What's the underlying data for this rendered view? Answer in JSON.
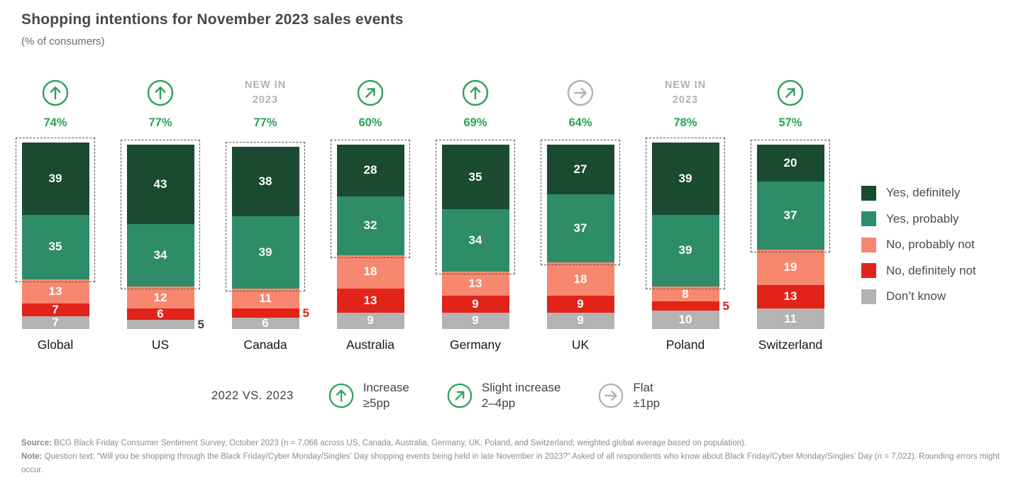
{
  "header": {
    "title": "Shopping intentions for November 2023 sales events",
    "subtitle": "(% of consumers)"
  },
  "colors": {
    "yes_definitely": "#1a4a2f",
    "yes_probably": "#2e8c69",
    "no_probably_not": "#f7886f",
    "no_definitely_not": "#e2231a",
    "dont_know": "#b4b3b1",
    "accent_green": "#27a355",
    "icon_green": "#2fa05c",
    "icon_gray": "#b1b1b1",
    "bracket": "#565656",
    "outside_red": "#d6261d",
    "outside_dark": "#3d3d3d"
  },
  "chart_data": {
    "type": "bar",
    "stacked": true,
    "unit": "% of consumers",
    "categories": [
      "Global",
      "US",
      "Canada",
      "Australia",
      "Germany",
      "UK",
      "Poland",
      "Switzerland"
    ],
    "series": [
      {
        "name": "Yes, definitely",
        "color": "#1a4a2f",
        "values": [
          39,
          43,
          38,
          28,
          35,
          27,
          39,
          20
        ]
      },
      {
        "name": "Yes, probably",
        "color": "#2e8c69",
        "values": [
          35,
          34,
          39,
          32,
          34,
          37,
          39,
          37
        ]
      },
      {
        "name": "No, probably not",
        "color": "#f7886f",
        "values": [
          13,
          12,
          11,
          18,
          13,
          18,
          8,
          19
        ]
      },
      {
        "name": "No, definitely not",
        "color": "#e2231a",
        "values": [
          7,
          6,
          5,
          13,
          9,
          9,
          5,
          13
        ]
      },
      {
        "name": "Don’t know",
        "color": "#b4b3b1",
        "values": [
          7,
          5,
          6,
          9,
          9,
          9,
          10,
          11
        ]
      }
    ],
    "yes_total_labels": [
      "74%",
      "77%",
      "77%",
      "60%",
      "69%",
      "64%",
      "78%",
      "57%"
    ],
    "trend_indicators": [
      "increase",
      "increase",
      "new",
      "slight-increase",
      "increase",
      "flat",
      "new",
      "slight-increase"
    ],
    "new_label": "NEW IN\n2023",
    "outside_labels": [
      {
        "country_index": 1,
        "series_index": 4,
        "value": 5,
        "color": "#3d3d3d"
      },
      {
        "country_index": 2,
        "series_index": 3,
        "value": 5,
        "color": "#d6261d"
      },
      {
        "country_index": 6,
        "series_index": 3,
        "value": 5,
        "color": "#d6261d"
      }
    ],
    "bracket_covers_series": [
      "Yes, definitely",
      "Yes, probably"
    ],
    "legend_position": "right",
    "ylim": [
      0,
      101
    ]
  },
  "legend": {
    "items": [
      {
        "label": "Yes, definitely",
        "color": "#1a4a2f"
      },
      {
        "label": "Yes, probably",
        "color": "#2e8c69"
      },
      {
        "label": "No, probably not",
        "color": "#f7886f"
      },
      {
        "label": "No, definitely not",
        "color": "#e2231a"
      },
      {
        "label": "Don’t know",
        "color": "#b4b3b1"
      }
    ]
  },
  "comparison_legend": {
    "label": "2022 VS. 2023",
    "items": [
      {
        "icon": "increase",
        "icon_color": "#2fa05c",
        "lines": "Increase\n≥5pp"
      },
      {
        "icon": "slight-increase",
        "icon_color": "#2fa05c",
        "lines": "Slight increase\n2–4pp"
      },
      {
        "icon": "flat",
        "icon_color": "#b1b1b1",
        "lines": "Flat\n±1pp"
      }
    ]
  },
  "footnote": {
    "source_label": "Source:",
    "source_text": " BCG Black Friday Consumer Sentiment Survey, October 2023 (n = 7,066 across US, Canada, Australia, Germany, UK, Poland, and Switzerland; weighted global average based on population).",
    "note_label": "Note:",
    "note_text": " Question text: “Will you be shopping through the Black Friday/Cyber Monday/Singles’ Day shopping events being held in late November in 2023?” Asked of all respondents who know about Black Friday/Cyber Monday/Singles’ Day (n = 7,022). Rounding errors might occur."
  }
}
